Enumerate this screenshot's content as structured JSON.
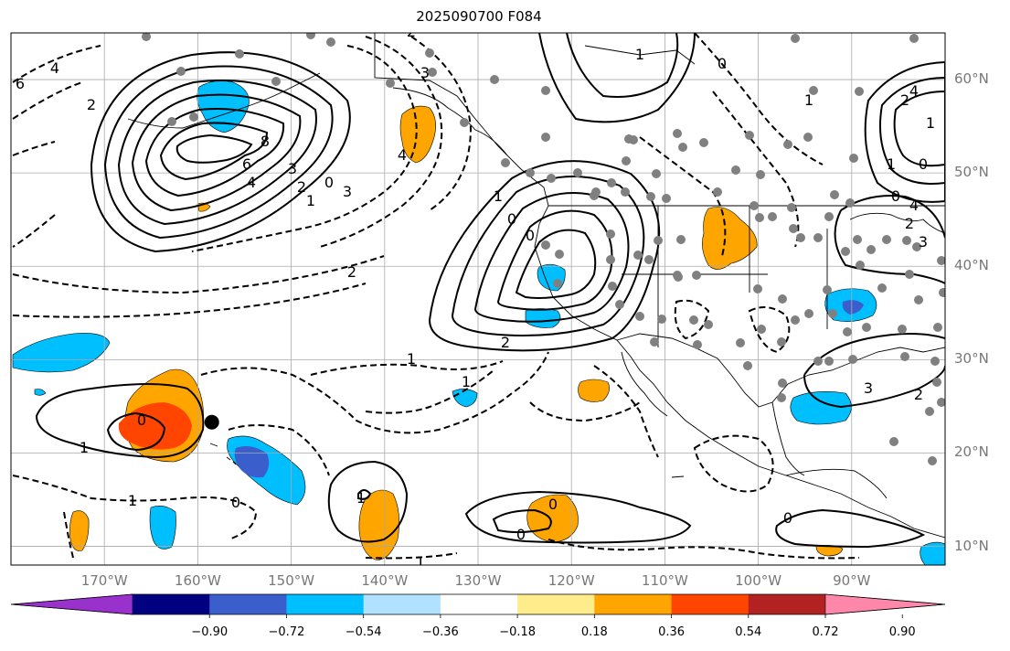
{
  "title": "2025090700 F084",
  "lat_labels": [
    {
      "text": "60°N",
      "lat": 60
    },
    {
      "text": "50°N",
      "lat": 50
    },
    {
      "text": "40°N",
      "lat": 40
    },
    {
      "text": "30°N",
      "lat": 30
    },
    {
      "text": "20°N",
      "lat": 20
    },
    {
      "text": "10°N",
      "lat": 10
    }
  ],
  "lon_labels": [
    {
      "text": "170°W",
      "lon": -170
    },
    {
      "text": "160°W",
      "lon": -160
    },
    {
      "text": "150°W",
      "lon": -150
    },
    {
      "text": "140°W",
      "lon": -140
    },
    {
      "text": "130°W",
      "lon": -130
    },
    {
      "text": "120°W",
      "lon": -120
    },
    {
      "text": "110°W",
      "lon": -110
    },
    {
      "text": "100°W",
      "lon": -100
    },
    {
      "text": "90°W",
      "lon": -90
    }
  ],
  "colorbar": {
    "colors": [
      "#9932cc",
      "#000080",
      "#3a5fcd",
      "#00bfff",
      "#b0e2ff",
      "#ffffff",
      "#ffec8b",
      "#ffa500",
      "#ff4500",
      "#b22222",
      "#ff88aa"
    ],
    "labels": [
      "−0.90",
      "−0.72",
      "−0.54",
      "−0.36",
      "−0.18",
      "0.18",
      "0.36",
      "0.54",
      "0.72",
      "0.90"
    ]
  },
  "contour_labels": [
    "6",
    "4",
    "2",
    "8",
    "6",
    "4",
    "3",
    "2",
    "1",
    "0",
    "3",
    "4",
    "2",
    "3",
    "2",
    "1",
    "1",
    "2",
    "1",
    "0",
    "0",
    "1",
    "0",
    "1",
    "2",
    "1",
    "0",
    "1",
    "0",
    "2",
    "3",
    "4",
    "4",
    "3",
    "2",
    "0",
    "1",
    "1",
    "0",
    "1",
    "0",
    "0",
    "0",
    "1"
  ],
  "marker": {
    "lon": -158.5,
    "lat": 23.3
  }
}
